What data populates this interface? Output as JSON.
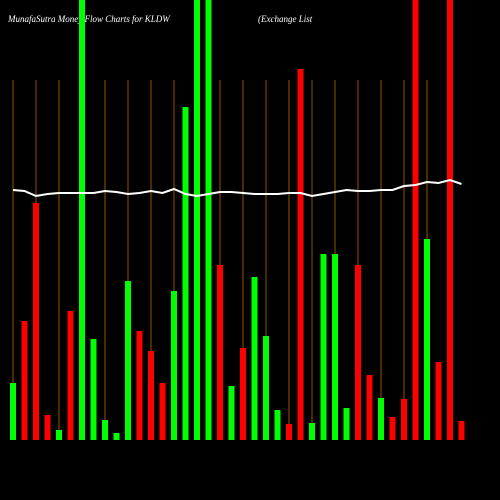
{
  "chart_data": {
    "type": "bar",
    "title": "MunafaSutra  Money Flow  Charts for KLDW",
    "subtitle": "(Exchange   List",
    "ylim": [
      0,
      440
    ],
    "series": [
      {
        "name": "Money flow",
        "colors": [
          "#00ff00",
          "#ff0000",
          "#ff0000",
          "#ff0000",
          "#00ff00",
          "#ff0000",
          "#00ff00",
          "#00ff00",
          "#00ff00",
          "#00ff00",
          "#00ff00",
          "#ff0000",
          "#ff0000",
          "#ff0000",
          "#00ff00",
          "#00ff00",
          "#00ff00",
          "#00ff00",
          "#ff0000",
          "#00ff00",
          "#ff0000",
          "#00ff00",
          "#00ff00",
          "#00ff00",
          "#ff0000",
          "#ff0000",
          "#00ff00",
          "#00ff00",
          "#00ff00",
          "#00ff00",
          "#ff0000",
          "#ff0000",
          "#00ff00",
          "#ff0000",
          "#ff0000",
          "#ff0000",
          "#00ff00",
          "#ff0000",
          "#ff0000",
          "#ff0000"
        ],
        "values": [
          57,
          119,
          237,
          25,
          10,
          129,
          440,
          101,
          20,
          7,
          159,
          109,
          89,
          57,
          149,
          333,
          440,
          440,
          175,
          54,
          92,
          163,
          104,
          30,
          16,
          371,
          17,
          186,
          186,
          32,
          175,
          65,
          42,
          23,
          41,
          440,
          201,
          78,
          440,
          19
        ]
      },
      {
        "name": "Average",
        "type": "line",
        "color": "#ffffff",
        "values": [
          250,
          249,
          244,
          246,
          247,
          247,
          247,
          247,
          249,
          248,
          246,
          247,
          249,
          247,
          251,
          246,
          244,
          246,
          248,
          248,
          247,
          246,
          246,
          246,
          247,
          247,
          244,
          246,
          248,
          250,
          249,
          249,
          250,
          250,
          254,
          255,
          258,
          257,
          260,
          256
        ]
      }
    ]
  }
}
